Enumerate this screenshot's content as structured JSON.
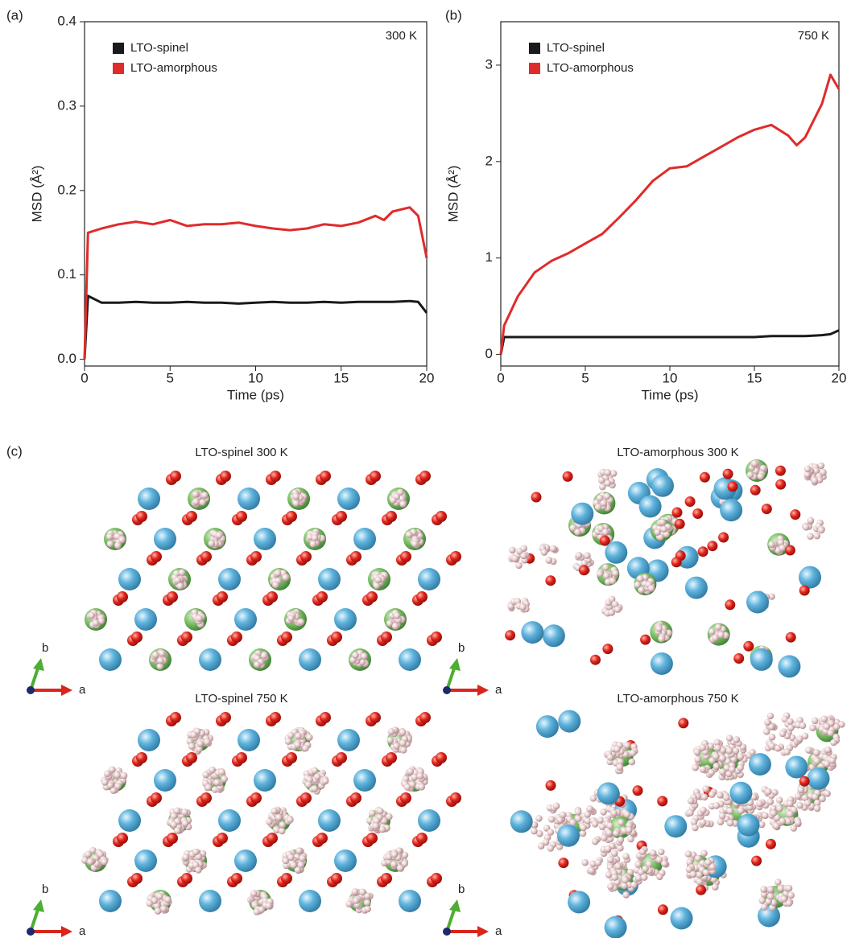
{
  "chart_data": [
    {
      "type": "line",
      "label": "(a)",
      "annotation": "300 K",
      "xlabel": "Time (ps)",
      "ylabel": "MSD (Å²)",
      "x": [
        0,
        0.2,
        1,
        2,
        3,
        4,
        5,
        6,
        7,
        8,
        9,
        10,
        11,
        12,
        13,
        14,
        15,
        16,
        17,
        17.5,
        18,
        19,
        19.5,
        20
      ],
      "xlim": [
        0,
        20
      ],
      "xticks": [
        0,
        5,
        10,
        15,
        20
      ],
      "ylim": [
        -0.008,
        0.4
      ],
      "yticks": [
        {
          "value": 0,
          "label": "0.0"
        },
        0.1,
        0.2,
        0.3,
        0.4
      ],
      "series": [
        {
          "name": "LTO-spinel",
          "color": "#1a1a1a",
          "values": [
            0,
            0.075,
            0.067,
            0.067,
            0.068,
            0.067,
            0.067,
            0.068,
            0.067,
            0.067,
            0.066,
            0.067,
            0.068,
            0.067,
            0.067,
            0.068,
            0.067,
            0.068,
            0.068,
            0.068,
            0.068,
            0.069,
            0.068,
            0.055
          ]
        },
        {
          "name": "LTO-amorphous",
          "color": "#e02b2b",
          "values": [
            0,
            0.15,
            0.155,
            0.16,
            0.163,
            0.16,
            0.165,
            0.158,
            0.16,
            0.16,
            0.162,
            0.158,
            0.155,
            0.153,
            0.155,
            0.16,
            0.158,
            0.162,
            0.17,
            0.165,
            0.175,
            0.18,
            0.17,
            0.12
          ]
        }
      ]
    },
    {
      "type": "line",
      "label": "(b)",
      "annotation": "750 K",
      "xlabel": "Time (ps)",
      "ylabel": "MSD (Å²)",
      "x": [
        0,
        0.2,
        1,
        2,
        3,
        4,
        5,
        6,
        7,
        8,
        9,
        10,
        11,
        12,
        13,
        14,
        15,
        16,
        17,
        17.5,
        18,
        19,
        19.5,
        20
      ],
      "xlim": [
        0,
        20
      ],
      "xticks": [
        0,
        5,
        10,
        15,
        20
      ],
      "ylim": [
        -0.12,
        3.45
      ],
      "yticks": [
        0,
        1,
        2,
        3
      ],
      "series": [
        {
          "name": "LTO-spinel",
          "color": "#1a1a1a",
          "values": [
            0,
            0.18,
            0.18,
            0.18,
            0.18,
            0.18,
            0.18,
            0.18,
            0.18,
            0.18,
            0.18,
            0.18,
            0.18,
            0.18,
            0.18,
            0.18,
            0.18,
            0.19,
            0.19,
            0.19,
            0.19,
            0.2,
            0.21,
            0.25
          ]
        },
        {
          "name": "LTO-amorphous",
          "color": "#e02b2b",
          "values": [
            0,
            0.3,
            0.6,
            0.85,
            0.97,
            1.05,
            1.15,
            1.25,
            1.42,
            1.6,
            1.8,
            1.93,
            1.95,
            2.05,
            2.15,
            2.25,
            2.33,
            2.38,
            2.27,
            2.17,
            2.25,
            2.6,
            2.9,
            2.75
          ]
        }
      ]
    }
  ],
  "panel_c": {
    "label": "(c)",
    "views": [
      {
        "title": "LTO-spinel 300 K",
        "axis_a": "a",
        "axis_b": "b"
      },
      {
        "title": "LTO-amorphous 300 K",
        "axis_a": "a",
        "axis_b": "b"
      },
      {
        "title": "LTO-spinel 750 K",
        "axis_a": "a",
        "axis_b": "b"
      },
      {
        "title": "LTO-amorphous 750 K",
        "axis_a": "a",
        "axis_b": "b"
      }
    ]
  }
}
